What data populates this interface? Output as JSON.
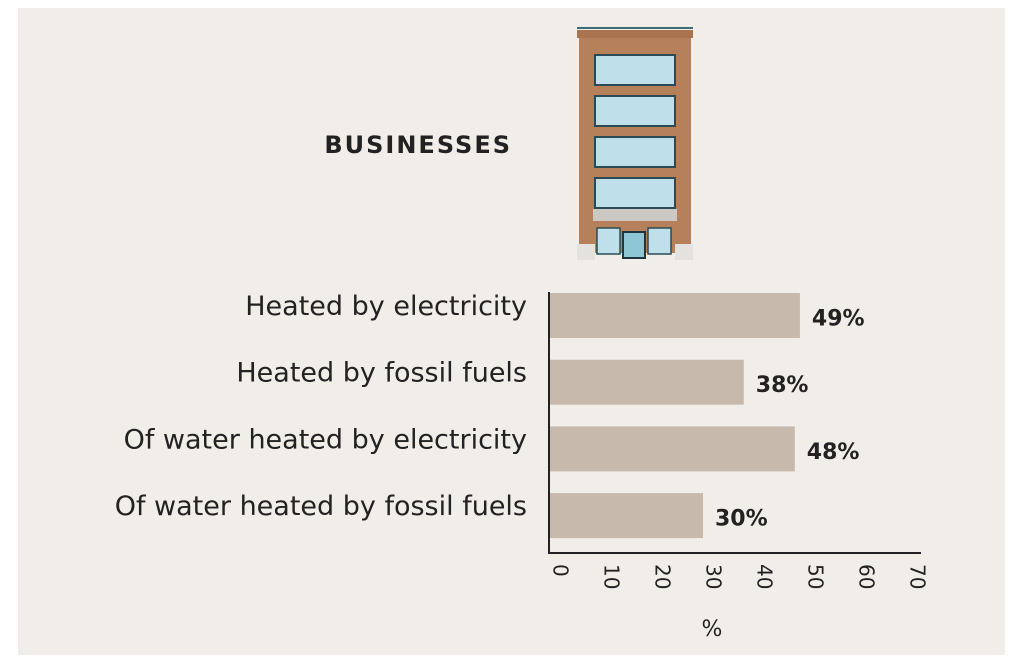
{
  "chart_data": {
    "type": "barh",
    "title": "BUSINESSES",
    "categories": [
      "Heated by electricity",
      "Heated by fossil fuels",
      "Of water heated by electricity",
      "Of water heated by fossil fuels"
    ],
    "values": [
      49,
      38,
      48,
      30
    ],
    "value_labels": [
      "49%",
      "38%",
      "48%",
      "30%"
    ],
    "color": "#c7b9ac",
    "xlim": [
      0,
      70
    ],
    "xticks": [
      0,
      10,
      20,
      30,
      40,
      50,
      60,
      70
    ],
    "xlabel": "%"
  }
}
